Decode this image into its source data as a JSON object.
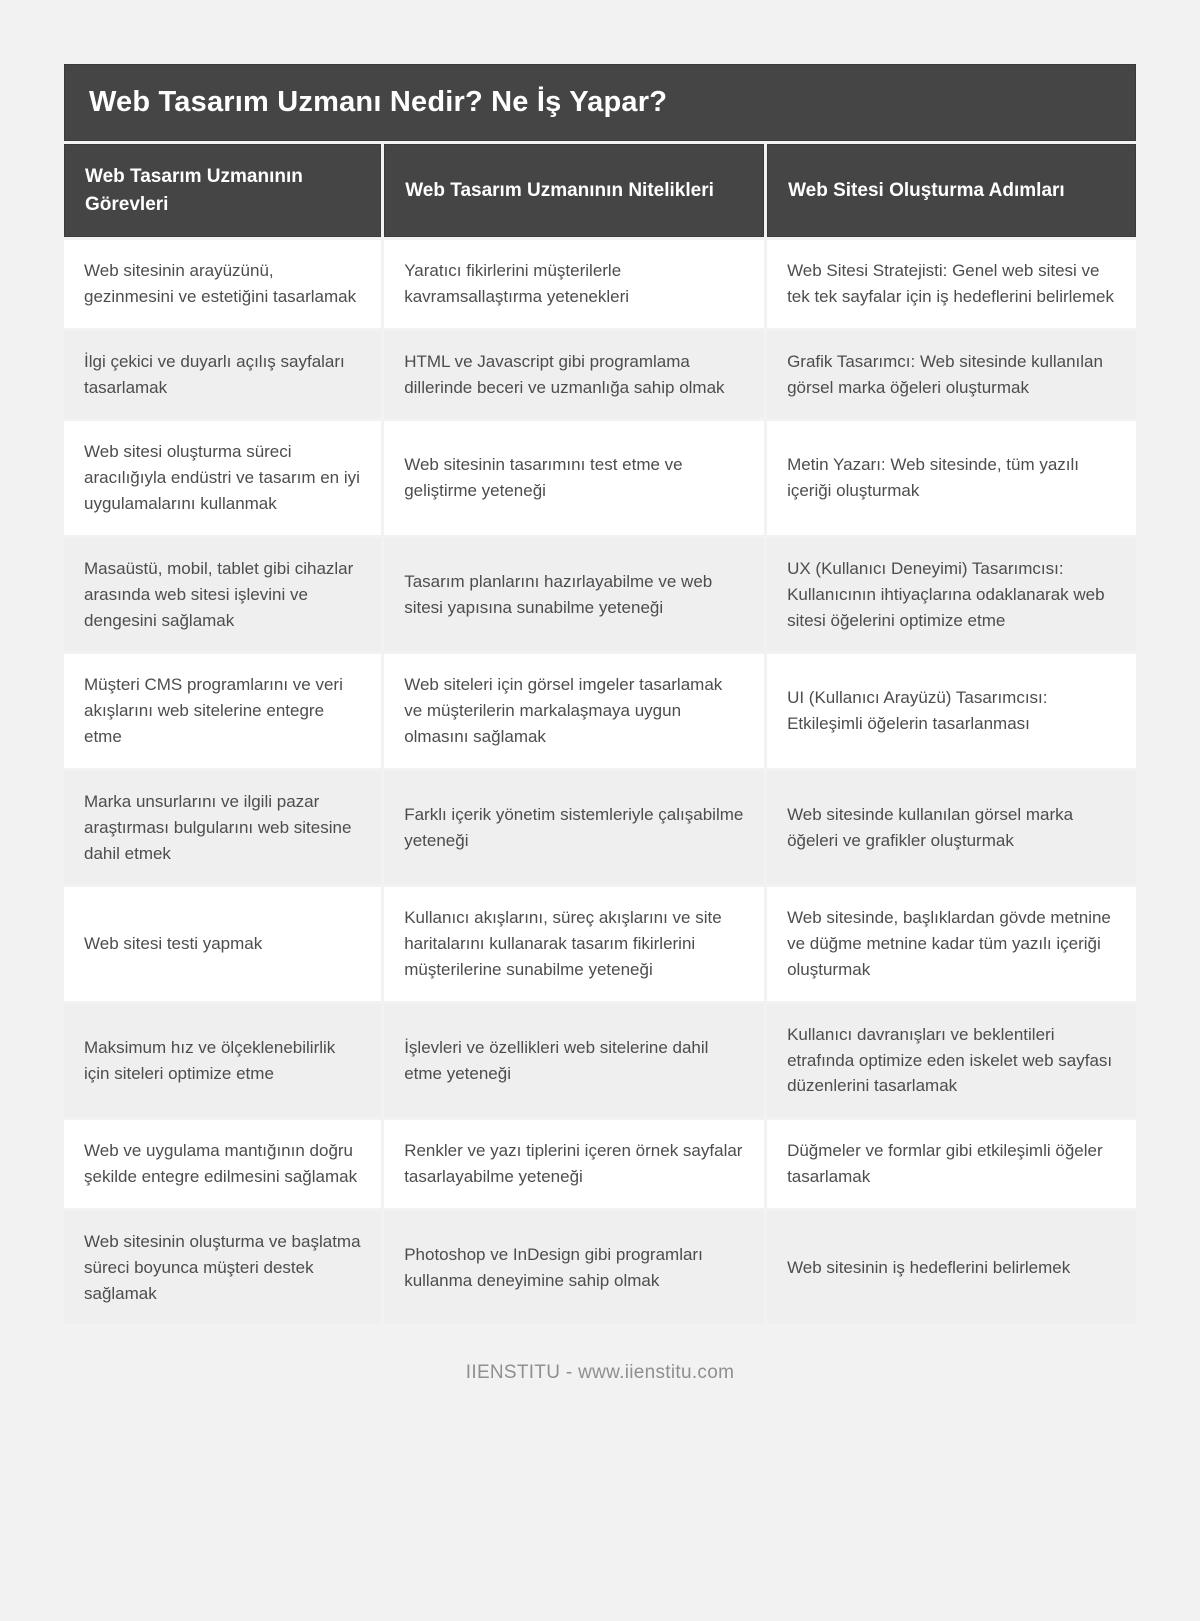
{
  "page": {
    "title": "Web Tasarım Uzmanı Nedir? Ne İş Yapar?",
    "footer": "IIENSTITU - www.iienstitu.com"
  },
  "colors": {
    "page_bg": "#f2f2f2",
    "header_bg": "#454545",
    "header_text": "#ffffff",
    "row_white": "#ffffff",
    "row_alt": "#efefef",
    "body_text": "#4d4d4d",
    "footer_text": "#8f8f8f"
  },
  "table": {
    "columns": [
      {
        "label": "Web Tasarım Uzmanının Görevleri"
      },
      {
        "label": "Web Tasarım Uzmanının Nitelikleri"
      },
      {
        "label": "Web Sitesi Oluşturma Adımları"
      }
    ],
    "rows": [
      [
        "Web sitesinin arayüzünü, gezinmesini ve estetiğini tasarlamak",
        "Yaratıcı fikirlerini müşterilerle kavramsallaştırma yetenekleri",
        "Web Sitesi Stratejisti: Genel web sitesi ve tek tek sayfalar için iş hedeflerini belirlemek"
      ],
      [
        "İlgi çekici ve duyarlı açılış sayfaları tasarlamak",
        "HTML ve Javascript gibi programlama dillerinde beceri ve uzmanlığa sahip olmak",
        "Grafik Tasarımcı: Web sitesinde kullanılan görsel marka öğeleri oluşturmak"
      ],
      [
        "Web sitesi oluşturma süreci aracılığıyla endüstri ve tasarım en iyi uygulamalarını kullanmak",
        "Web sitesinin tasarımını test etme ve geliştirme yeteneği",
        "Metin Yazarı: Web sitesinde, tüm yazılı içeriği oluşturmak"
      ],
      [
        "Masaüstü, mobil, tablet gibi cihazlar arasında web sitesi işlevini ve dengesini sağlamak",
        "Tasarım planlarını hazırlayabilme ve web sitesi yapısına sunabilme yeteneği",
        "UX (Kullanıcı Deneyimi) Tasarımcısı: Kullanıcının ihtiyaçlarına odaklanarak web sitesi öğelerini optimize etme"
      ],
      [
        "Müşteri CMS programlarını ve veri akışlarını web sitelerine entegre etme",
        "Web siteleri için görsel imgeler tasarlamak ve müşterilerin markalaşmaya uygun olmasını sağlamak",
        "UI (Kullanıcı Arayüzü) Tasarımcısı: Etkileşimli öğelerin tasarlanması"
      ],
      [
        "Marka unsurlarını ve ilgili pazar araştırması bulgularını web sitesine dahil etmek",
        "Farklı içerik yönetim sistemleriyle çalışabilme yeteneği",
        "Web sitesinde kullanılan görsel marka öğeleri ve grafikler oluşturmak"
      ],
      [
        "Web sitesi testi yapmak",
        "Kullanıcı akışlarını, süreç akışlarını ve site haritalarını kullanarak tasarım fikirlerini müşterilerine sunabilme yeteneği",
        "Web sitesinde, başlıklardan gövde metnine ve düğme metnine kadar tüm yazılı içeriği oluşturmak"
      ],
      [
        "Maksimum hız ve ölçeklenebilirlik için siteleri optimize etme",
        "İşlevleri ve özellikleri web sitelerine dahil etme yeteneği",
        "Kullanıcı davranışları ve beklentileri etrafında optimize eden iskelet web sayfası düzenlerini tasarlamak"
      ],
      [
        "Web ve uygulama mantığının doğru şekilde entegre edilmesini sağlamak",
        "Renkler ve yazı tiplerini içeren örnek sayfalar tasarlayabilme yeteneği",
        "Düğmeler ve formlar gibi etkileşimli öğeler tasarlamak"
      ],
      [
        "Web sitesinin oluşturma ve başlatma süreci boyunca müşteri destek sağlamak",
        "Photoshop ve InDesign gibi programları kullanma deneyimine sahip olmak",
        "Web sitesinin iş hedeflerini belirlemek"
      ]
    ]
  }
}
